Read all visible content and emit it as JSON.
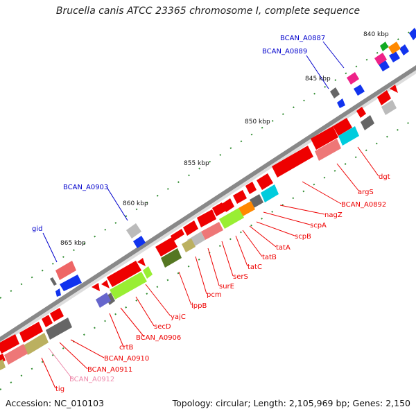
{
  "title": "Brucella canis ATCC 23365 chromosome I, complete sequence",
  "footer": {
    "accession": "Accession: NC_010103",
    "summary": "Topology: circular; Length: 2,105,969 bp; Genes: 2,150"
  },
  "colors": {
    "backbone": "#8c8c8c",
    "tick": "#2e8b2e",
    "label_red": "#ee0000",
    "label_blue": "#0000cc",
    "label_pink": "#ee88aa"
  },
  "ticks": [
    "840 kbp",
    "845 kbp",
    "850 kbp",
    "855 kbp",
    "860 kbp",
    "865 kbp"
  ],
  "gene_labels": [
    "dgt",
    "argS",
    "BCAN_A0892",
    "nagZ",
    "scpA",
    "scpB",
    "tatA",
    "tatB",
    "tatC",
    "serS",
    "surE",
    "pcm",
    "lppB",
    "yajC",
    "secD",
    "BCAN_A0906",
    "crtB",
    "BCAN_A0910",
    "BCAN_A0911",
    "BCAN_A0912",
    "tig",
    "BCAN_A0887",
    "BCAN_A0889",
    "BCAN_A0903",
    "gid"
  ]
}
